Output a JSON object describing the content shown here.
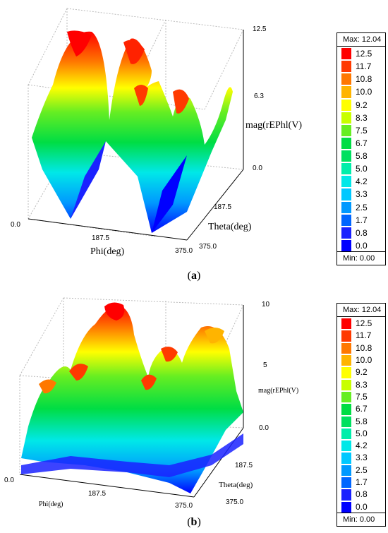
{
  "chart_data": [
    {
      "type": "surface",
      "panel_label": "a",
      "xlabel": "Phi(deg)",
      "ylabel": "Theta(deg)",
      "zlabel": "mag(rEPhl(V)",
      "x_ticks": [
        "0.0",
        "187.5",
        "375.0"
      ],
      "y_ticks": [
        "187.5",
        "375.0"
      ],
      "z_ticks": [
        "0.0",
        "6.3",
        "12.5"
      ],
      "x_range": [
        0,
        375
      ],
      "y_range": [
        0,
        375
      ],
      "z_range": [
        0,
        12.5
      ],
      "legend": {
        "max_label": "Max: 12.04",
        "min_label": "Min: 0.00",
        "levels": [
          "12.5",
          "11.7",
          "10.8",
          "10.0",
          "9.2",
          "8.3",
          "7.5",
          "6.7",
          "5.8",
          "5.0",
          "4.2",
          "3.3",
          "2.5",
          "1.7",
          "0.8",
          "0.0"
        ],
        "colors": [
          "#ff0000",
          "#ff3a00",
          "#ff7800",
          "#ffb400",
          "#ffff00",
          "#c8ff00",
          "#66ee22",
          "#00dd44",
          "#00e060",
          "#00eeaa",
          "#00e8e8",
          "#00c8ff",
          "#0099ff",
          "#0066ff",
          "#1a22ff",
          "#0000ff"
        ]
      },
      "peaks": [
        {
          "phi": 93.75,
          "theta": 0,
          "value": 12.04
        },
        {
          "phi": 281.25,
          "theta": 0,
          "value": 12.04
        },
        {
          "phi": 93.75,
          "theta": 187.5,
          "value": 12.04
        },
        {
          "phi": 281.25,
          "theta": 187.5,
          "value": 12.04
        }
      ],
      "minima": [
        {
          "phi": 0,
          "theta": 375,
          "value": 0.0
        },
        {
          "phi": 187.5,
          "theta": 375,
          "value": 0.0
        }
      ]
    },
    {
      "type": "surface",
      "panel_label": "b",
      "xlabel": "Phi(deg)",
      "ylabel": "Theta(deg)",
      "zlabel": "mag(rEPhl(V)",
      "x_ticks": [
        "0.0",
        "187.5",
        "375.0"
      ],
      "y_ticks": [
        "187.5",
        "375.0"
      ],
      "z_ticks": [
        "0.0",
        "5",
        "10"
      ],
      "x_range": [
        0,
        375
      ],
      "y_range": [
        0,
        375
      ],
      "z_range": [
        0,
        10
      ],
      "legend": {
        "max_label": "Max: 12.04",
        "min_label": "Min: 0.00",
        "levels": [
          "12.5",
          "11.7",
          "10.8",
          "10.0",
          "9.2",
          "8.3",
          "7.5",
          "6.7",
          "5.8",
          "5.0",
          "4.2",
          "3.3",
          "2.5",
          "1.7",
          "0.8",
          "0.0"
        ],
        "colors": [
          "#ff0000",
          "#ff3a00",
          "#ff7800",
          "#ffb400",
          "#ffff00",
          "#c8ff00",
          "#66ee22",
          "#00dd44",
          "#00e060",
          "#00eeaa",
          "#00e8e8",
          "#00c8ff",
          "#0099ff",
          "#0066ff",
          "#1a22ff",
          "#0000ff"
        ]
      },
      "peaks": [
        {
          "phi": 93.75,
          "theta": 0,
          "value": 12.04
        },
        {
          "phi": 281.25,
          "theta": 0,
          "value": 10.0
        },
        {
          "phi": 93.75,
          "theta": 187.5,
          "value": 11.0
        },
        {
          "phi": 281.25,
          "theta": 187.5,
          "value": 9.0
        },
        {
          "phi": 40,
          "theta": 300,
          "value": 8.3
        },
        {
          "phi": 200,
          "theta": 300,
          "value": 8.3
        }
      ]
    }
  ]
}
